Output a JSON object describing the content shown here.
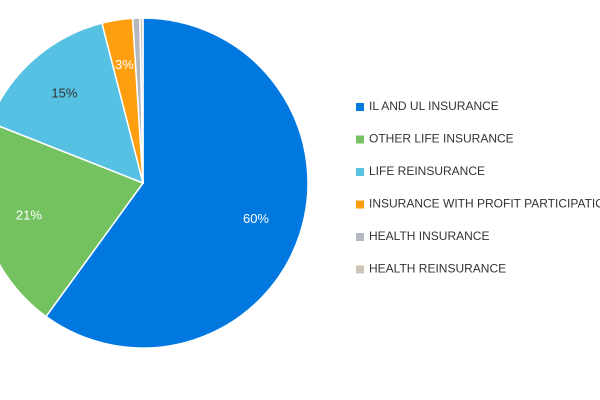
{
  "chart_data": {
    "type": "pie",
    "title": "",
    "slices": [
      {
        "label": "IL AND UL INSURANCE",
        "value": 60,
        "display": "60%",
        "color": "#0078e0",
        "label_color": "#ffffff"
      },
      {
        "label": "OTHER LIFE INSURANCE",
        "value": 21,
        "display": "21%",
        "color": "#73c15f",
        "label_color": "#ffffff"
      },
      {
        "label": "LIFE REINSURANCE",
        "value": 15,
        "display": "15%",
        "color": "#56c1e3",
        "label_color": "#333333"
      },
      {
        "label": "INSURANCE WITH PROFIT PARTICIPATION",
        "value": 3,
        "display": "3%",
        "color": "#ff9f0f",
        "label_color": "#ffffff"
      },
      {
        "label": "HEALTH INSURANCE",
        "value": 0.7,
        "display": "",
        "color": "#b3b7be",
        "label_color": "#333333"
      },
      {
        "label": "HEALTH REINSURANCE",
        "value": 0.3,
        "display": "",
        "color": "#d3c4b8",
        "label_color": "#333333"
      }
    ],
    "legend_position": "right"
  }
}
